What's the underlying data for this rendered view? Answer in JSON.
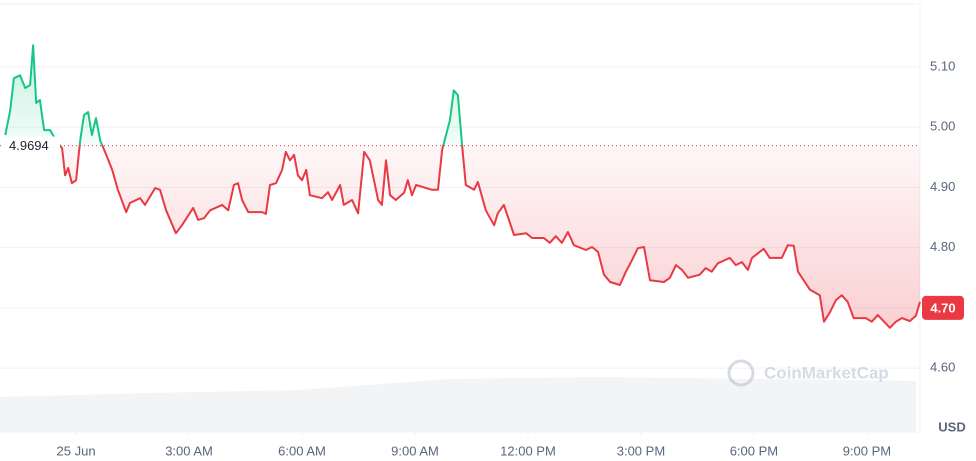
{
  "chart_data": {
    "type": "line",
    "x": [
      -1.88,
      -1.75,
      -1.65,
      -1.49,
      -1.35,
      -1.22,
      -1.14,
      -1.06,
      -0.96,
      -0.85,
      -0.69,
      -0.53,
      -0.37,
      -0.29,
      -0.21,
      -0.11,
      0,
      0.11,
      0.21,
      0.32,
      0.42,
      0.53,
      0.64,
      0.8,
      0.96,
      1.11,
      1.33,
      1.43,
      1.7,
      1.83,
      2.1,
      2.23,
      2.39,
      2.65,
      2.81,
      3.11,
      3.24,
      3.4,
      3.56,
      3.88,
      4.04,
      4.19,
      4.3,
      4.41,
      4.57,
      4.94,
      5.04,
      5.15,
      5.31,
      5.47,
      5.57,
      5.68,
      5.79,
      5.89,
      6.0,
      6.11,
      6.21,
      6.53,
      6.69,
      6.8,
      7.01,
      7.11,
      7.33,
      7.49,
      7.65,
      7.8,
      8.02,
      8.12,
      8.23,
      8.34,
      8.49,
      8.71,
      8.81,
      8.92,
      9.03,
      9.45,
      9.61,
      9.72,
      9.93,
      10.03,
      10.14,
      10.25,
      10.35,
      10.57,
      10.67,
      10.88,
      11.1,
      11.2,
      11.36,
      11.63,
      11.95,
      12.11,
      12.42,
      12.58,
      12.74,
      12.9,
      13.06,
      13.22,
      13.54,
      13.7,
      13.86,
      14.02,
      14.18,
      14.44,
      14.6,
      14.76,
      14.92,
      15.08,
      15.24,
      15.61,
      15.77,
      15.93,
      16.09,
      16.25,
      16.56,
      16.72,
      16.88,
      17.04,
      17.36,
      17.52,
      17.68,
      17.84,
      17.95,
      18.26,
      18.42,
      18.74,
      18.9,
      19.06,
      19.17,
      19.49,
      19.75,
      19.86,
      20.02,
      20.18,
      20.33,
      20.49,
      20.65,
      20.97,
      21.13,
      21.29,
      21.61,
      21.77,
      21.93,
      22.14,
      22.3,
      22.41
    ],
    "series": [
      {
        "name": "Price",
        "color": "#ea3943",
        "color_up": "#16c784",
        "values": [
          4.987,
          5.028,
          5.081,
          5.086,
          5.065,
          5.07,
          5.136,
          5.04,
          5.045,
          4.995,
          4.995,
          4.978,
          4.965,
          4.92,
          4.932,
          4.907,
          4.912,
          4.978,
          5.02,
          5.025,
          4.987,
          5.015,
          4.978,
          4.954,
          4.929,
          4.896,
          4.859,
          4.874,
          4.882,
          4.871,
          4.899,
          4.896,
          4.862,
          4.824,
          4.837,
          4.866,
          4.846,
          4.849,
          4.862,
          4.871,
          4.862,
          4.904,
          4.907,
          4.879,
          4.859,
          4.859,
          4.856,
          4.904,
          4.907,
          4.929,
          4.959,
          4.945,
          4.954,
          4.92,
          4.912,
          4.929,
          4.887,
          4.882,
          4.892,
          4.879,
          4.904,
          4.871,
          4.879,
          4.857,
          4.959,
          4.945,
          4.879,
          4.871,
          4.945,
          4.887,
          4.879,
          4.891,
          4.912,
          4.887,
          4.904,
          4.896,
          4.896,
          4.962,
          5.012,
          5.061,
          5.053,
          4.97,
          4.904,
          4.896,
          4.909,
          4.862,
          4.837,
          4.857,
          4.871,
          4.821,
          4.824,
          4.816,
          4.816,
          4.808,
          4.819,
          4.808,
          4.826,
          4.804,
          4.796,
          4.801,
          4.793,
          4.755,
          4.743,
          4.738,
          4.76,
          4.779,
          4.799,
          4.801,
          4.746,
          4.743,
          4.75,
          4.771,
          4.763,
          4.75,
          4.755,
          4.766,
          4.76,
          4.774,
          4.783,
          4.771,
          4.776,
          4.763,
          4.783,
          4.798,
          4.783,
          4.783,
          4.804,
          4.803,
          4.76,
          4.73,
          4.721,
          4.677,
          4.693,
          4.713,
          4.721,
          4.71,
          4.683,
          4.683,
          4.677,
          4.688,
          4.667,
          4.677,
          4.683,
          4.678,
          4.687,
          4.71
        ]
      }
    ],
    "baseline": 4.9694,
    "last_price": {
      "value": 4.7,
      "label": "4.70"
    },
    "xlim": [
      -2.02,
      22.41
    ],
    "xticks": [
      {
        "value": 0,
        "label": "25 Jun"
      },
      {
        "value": 3,
        "label": "3:00 AM"
      },
      {
        "value": 6,
        "label": "6:00 AM"
      },
      {
        "value": 9,
        "label": "9:00 AM"
      },
      {
        "value": 12,
        "label": "12:00 PM"
      },
      {
        "value": 15,
        "label": "3:00 PM"
      },
      {
        "value": 18,
        "label": "6:00 PM"
      },
      {
        "value": 21,
        "label": "9:00 PM"
      }
    ],
    "ylim": [
      4.494,
      5.211
    ],
    "yticks": [
      {
        "value": 4.6,
        "label": "4.60"
      },
      {
        "value": 4.8,
        "label": "4.80"
      },
      {
        "value": 4.9,
        "label": "4.90"
      },
      {
        "value": 5.0,
        "label": "5.00"
      },
      {
        "value": 5.1,
        "label": "5.10"
      }
    ],
    "y_label": "USD",
    "watermark": "CoinMarketCap",
    "grid": true
  }
}
